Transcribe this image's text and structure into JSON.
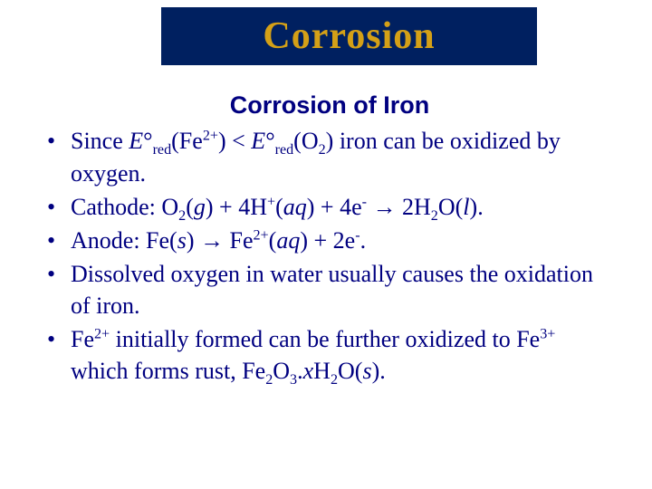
{
  "colors": {
    "title_bar_bg": "#002060",
    "title_text": "#d4a017",
    "body_text": "#000080",
    "page_bg": "#ffffff"
  },
  "title": "Corrosion",
  "subtitle": "Corrosion of Iron",
  "bullets": {
    "b1_since": "Since ",
    "b1_E": "E",
    "b1_deg": "°",
    "b1_red": "red",
    "b1_fe2_open": "(Fe",
    "b1_two_plus": "2+",
    "b1_close": ") ",
    "b1_lt": "< ",
    "b1_o2_open": "(O",
    "b1_two": "2",
    "b1_close2": ") iron can be oxidized by oxygen.",
    "b2_label": "Cathode: O",
    "b2_g": "g",
    "b2_plus4h": ") + 4H",
    "b2_plus": "+",
    "b2_aq": "aq",
    "b2_plus4e": ") + 4e",
    "b2_minus": "-",
    "b2_arrow": " → 2H",
    "b2_ol": "O(",
    "b2_l": "l",
    "b2_end": ").",
    "b3_label": "Anode: Fe(",
    "b3_s": "s",
    "b3_arrow": ") → Fe",
    "b3_aq2": "(",
    "b3_plus2e": ") + 2e",
    "b3_end": ".",
    "b4_text": "Dissolved oxygen in water usually causes the oxidation of iron.",
    "b5_a": "Fe",
    "b5_b": " initially formed can be further oxidized to Fe",
    "b5_three_plus": "3+",
    "b5_c": " which forms rust, Fe",
    "b5_three": "3",
    "b5_dot": ".",
    "b5_x": "x",
    "b5_h2o": "H",
    "b5_end": ")."
  }
}
